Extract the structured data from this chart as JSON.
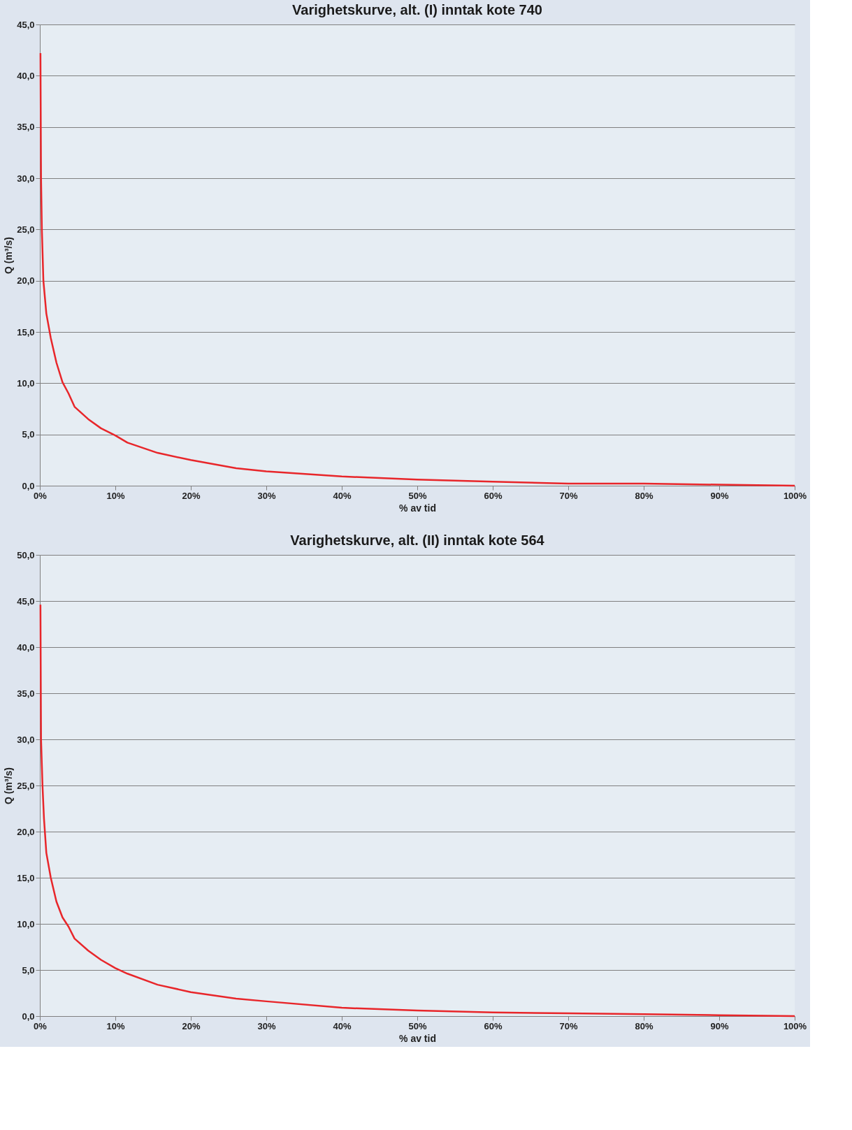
{
  "chart_data": [
    {
      "type": "line",
      "title": "Varighetskurve, alt. (I) inntak kote 740",
      "xlabel": "% av tid",
      "ylabel": "Q (m³/s)",
      "x": [
        0.08,
        0.16,
        0.27,
        0.47,
        0.86,
        1.45,
        2.2,
        3.0,
        3.8,
        4.6,
        6.4,
        8.1,
        10,
        11.6,
        15.6,
        20,
        26,
        30,
        40,
        50,
        60,
        70,
        80,
        90,
        100
      ],
      "series": [
        {
          "color": "#e8262a",
          "values": [
            42.2,
            30.0,
            24.9,
            20.0,
            16.8,
            14.4,
            12.0,
            10.1,
            9.0,
            7.7,
            6.5,
            5.6,
            4.9,
            4.2,
            3.2,
            2.5,
            1.7,
            1.4,
            0.9,
            0.6,
            0.4,
            0.2,
            0.2,
            0.1,
            0.0
          ]
        }
      ],
      "xlim": [
        0,
        100
      ],
      "ylim": [
        0,
        45
      ],
      "xticks": [
        {
          "value": 0,
          "label": "0%"
        },
        {
          "value": 10,
          "label": "10%"
        },
        {
          "value": 20,
          "label": "20%"
        },
        {
          "value": 30,
          "label": "30%"
        },
        {
          "value": 40,
          "label": "40%"
        },
        {
          "value": 50,
          "label": "50%"
        },
        {
          "value": 60,
          "label": "60%"
        },
        {
          "value": 70,
          "label": "70%"
        },
        {
          "value": 80,
          "label": "80%"
        },
        {
          "value": 90,
          "label": "90%"
        },
        {
          "value": 100,
          "label": "100%"
        }
      ],
      "yticks": [
        {
          "value": 0,
          "label": "0,0"
        },
        {
          "value": 5,
          "label": "5,0"
        },
        {
          "value": 10,
          "label": "10,0"
        },
        {
          "value": 15,
          "label": "15,0"
        },
        {
          "value": 20,
          "label": "20,0"
        },
        {
          "value": 25,
          "label": "25,0"
        },
        {
          "value": 30,
          "label": "30,0"
        },
        {
          "value": 35,
          "label": "35,0"
        },
        {
          "value": 40,
          "label": "40,0"
        },
        {
          "value": 45,
          "label": "45,0"
        }
      ],
      "grid": "y",
      "marker": "none",
      "line_style": "solid"
    },
    {
      "type": "line",
      "title": "Varighetskurve, alt. (II) inntak kote 564",
      "xlabel": "% av tid",
      "ylabel": "Q (m³/s)",
      "x": [
        0.08,
        0.16,
        0.35,
        0.55,
        0.86,
        1.45,
        2.2,
        3.0,
        3.8,
        4.6,
        6.4,
        8.1,
        10,
        11.6,
        15.6,
        20,
        26,
        30,
        40,
        50,
        60,
        70,
        80,
        90,
        100
      ],
      "series": [
        {
          "color": "#e8262a",
          "values": [
            44.6,
            30.0,
            25.0,
            21.4,
            17.7,
            15.0,
            12.4,
            10.7,
            9.7,
            8.4,
            7.1,
            6.1,
            5.2,
            4.6,
            3.4,
            2.6,
            1.9,
            1.6,
            0.9,
            0.6,
            0.4,
            0.3,
            0.2,
            0.1,
            0.0
          ]
        }
      ],
      "xlim": [
        0,
        100
      ],
      "ylim": [
        0,
        50
      ],
      "xticks": [
        {
          "value": 0,
          "label": "0%"
        },
        {
          "value": 10,
          "label": "10%"
        },
        {
          "value": 20,
          "label": "20%"
        },
        {
          "value": 30,
          "label": "30%"
        },
        {
          "value": 40,
          "label": "40%"
        },
        {
          "value": 50,
          "label": "50%"
        },
        {
          "value": 60,
          "label": "60%"
        },
        {
          "value": 70,
          "label": "70%"
        },
        {
          "value": 80,
          "label": "80%"
        },
        {
          "value": 90,
          "label": "90%"
        },
        {
          "value": 100,
          "label": "100%"
        }
      ],
      "yticks": [
        {
          "value": 0,
          "label": "0,0"
        },
        {
          "value": 5,
          "label": "5,0"
        },
        {
          "value": 10,
          "label": "10,0"
        },
        {
          "value": 15,
          "label": "15,0"
        },
        {
          "value": 20,
          "label": "20,0"
        },
        {
          "value": 25,
          "label": "25,0"
        },
        {
          "value": 30,
          "label": "30,0"
        },
        {
          "value": 35,
          "label": "35,0"
        },
        {
          "value": 40,
          "label": "40,0"
        },
        {
          "value": 45,
          "label": "45,0"
        },
        {
          "value": 50,
          "label": "50,0"
        }
      ],
      "grid": "y",
      "marker": "none",
      "line_style": "solid"
    }
  ]
}
